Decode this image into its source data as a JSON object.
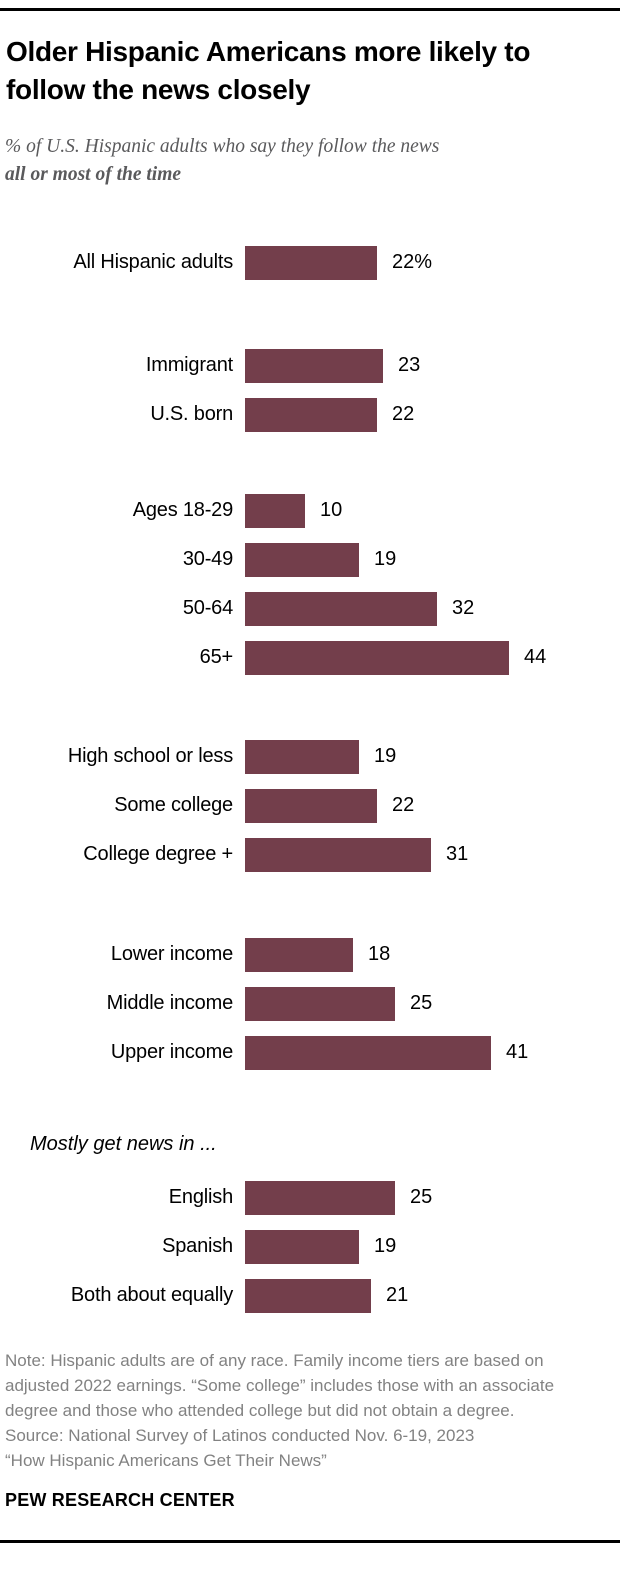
{
  "header": {
    "title": "Older Hispanic Americans more likely to follow the news closely",
    "subtitle_regular": "% of U.S. Hispanic adults who say they follow the news",
    "subtitle_bold": "all or most of the time"
  },
  "chart_data": {
    "type": "bar",
    "orientation": "horizontal",
    "value_unit": "%",
    "bar_color": "#733E4B",
    "axis_range": [
      0,
      50
    ],
    "grid": false,
    "groups": [
      {
        "name": "total",
        "rows": [
          {
            "label": "All Hispanic adults",
            "value": 22,
            "value_label": "22%"
          }
        ]
      },
      {
        "name": "nativity",
        "rows": [
          {
            "label": "Immigrant",
            "value": 23,
            "value_label": "23"
          },
          {
            "label": "U.S. born",
            "value": 22,
            "value_label": "22"
          }
        ]
      },
      {
        "name": "age",
        "rows": [
          {
            "label": "Ages 18-29",
            "value": 10,
            "value_label": "10"
          },
          {
            "label": "30-49",
            "value": 19,
            "value_label": "19"
          },
          {
            "label": "50-64",
            "value": 32,
            "value_label": "32"
          },
          {
            "label": "65+",
            "value": 44,
            "value_label": "44"
          }
        ]
      },
      {
        "name": "education",
        "rows": [
          {
            "label": "High school or less",
            "value": 19,
            "value_label": "19"
          },
          {
            "label": "Some college",
            "value": 22,
            "value_label": "22"
          },
          {
            "label": "College degree +",
            "value": 31,
            "value_label": "31"
          }
        ]
      },
      {
        "name": "income",
        "rows": [
          {
            "label": "Lower income",
            "value": 18,
            "value_label": "18"
          },
          {
            "label": "Middle income",
            "value": 25,
            "value_label": "25"
          },
          {
            "label": "Upper income",
            "value": 41,
            "value_label": "41"
          }
        ]
      },
      {
        "name": "news-language",
        "heading": "Mostly get news in ...",
        "rows": [
          {
            "label": "English",
            "value": 25,
            "value_label": "25"
          },
          {
            "label": "Spanish",
            "value": 19,
            "value_label": "19"
          },
          {
            "label": "Both about equally",
            "value": 21,
            "value_label": "21"
          }
        ]
      }
    ]
  },
  "footer": {
    "note": "Note: Hispanic adults are of any race. Family income tiers are based on adjusted 2022 earnings. “Some college” includes those with an associate degree and those who attended college but did not obtain a degree.",
    "source": "Source: National Survey of Latinos conducted Nov. 6-19, 2023",
    "report": "“How Hispanic Americans Get Their News”",
    "brand": "PEW RESEARCH CENTER"
  }
}
